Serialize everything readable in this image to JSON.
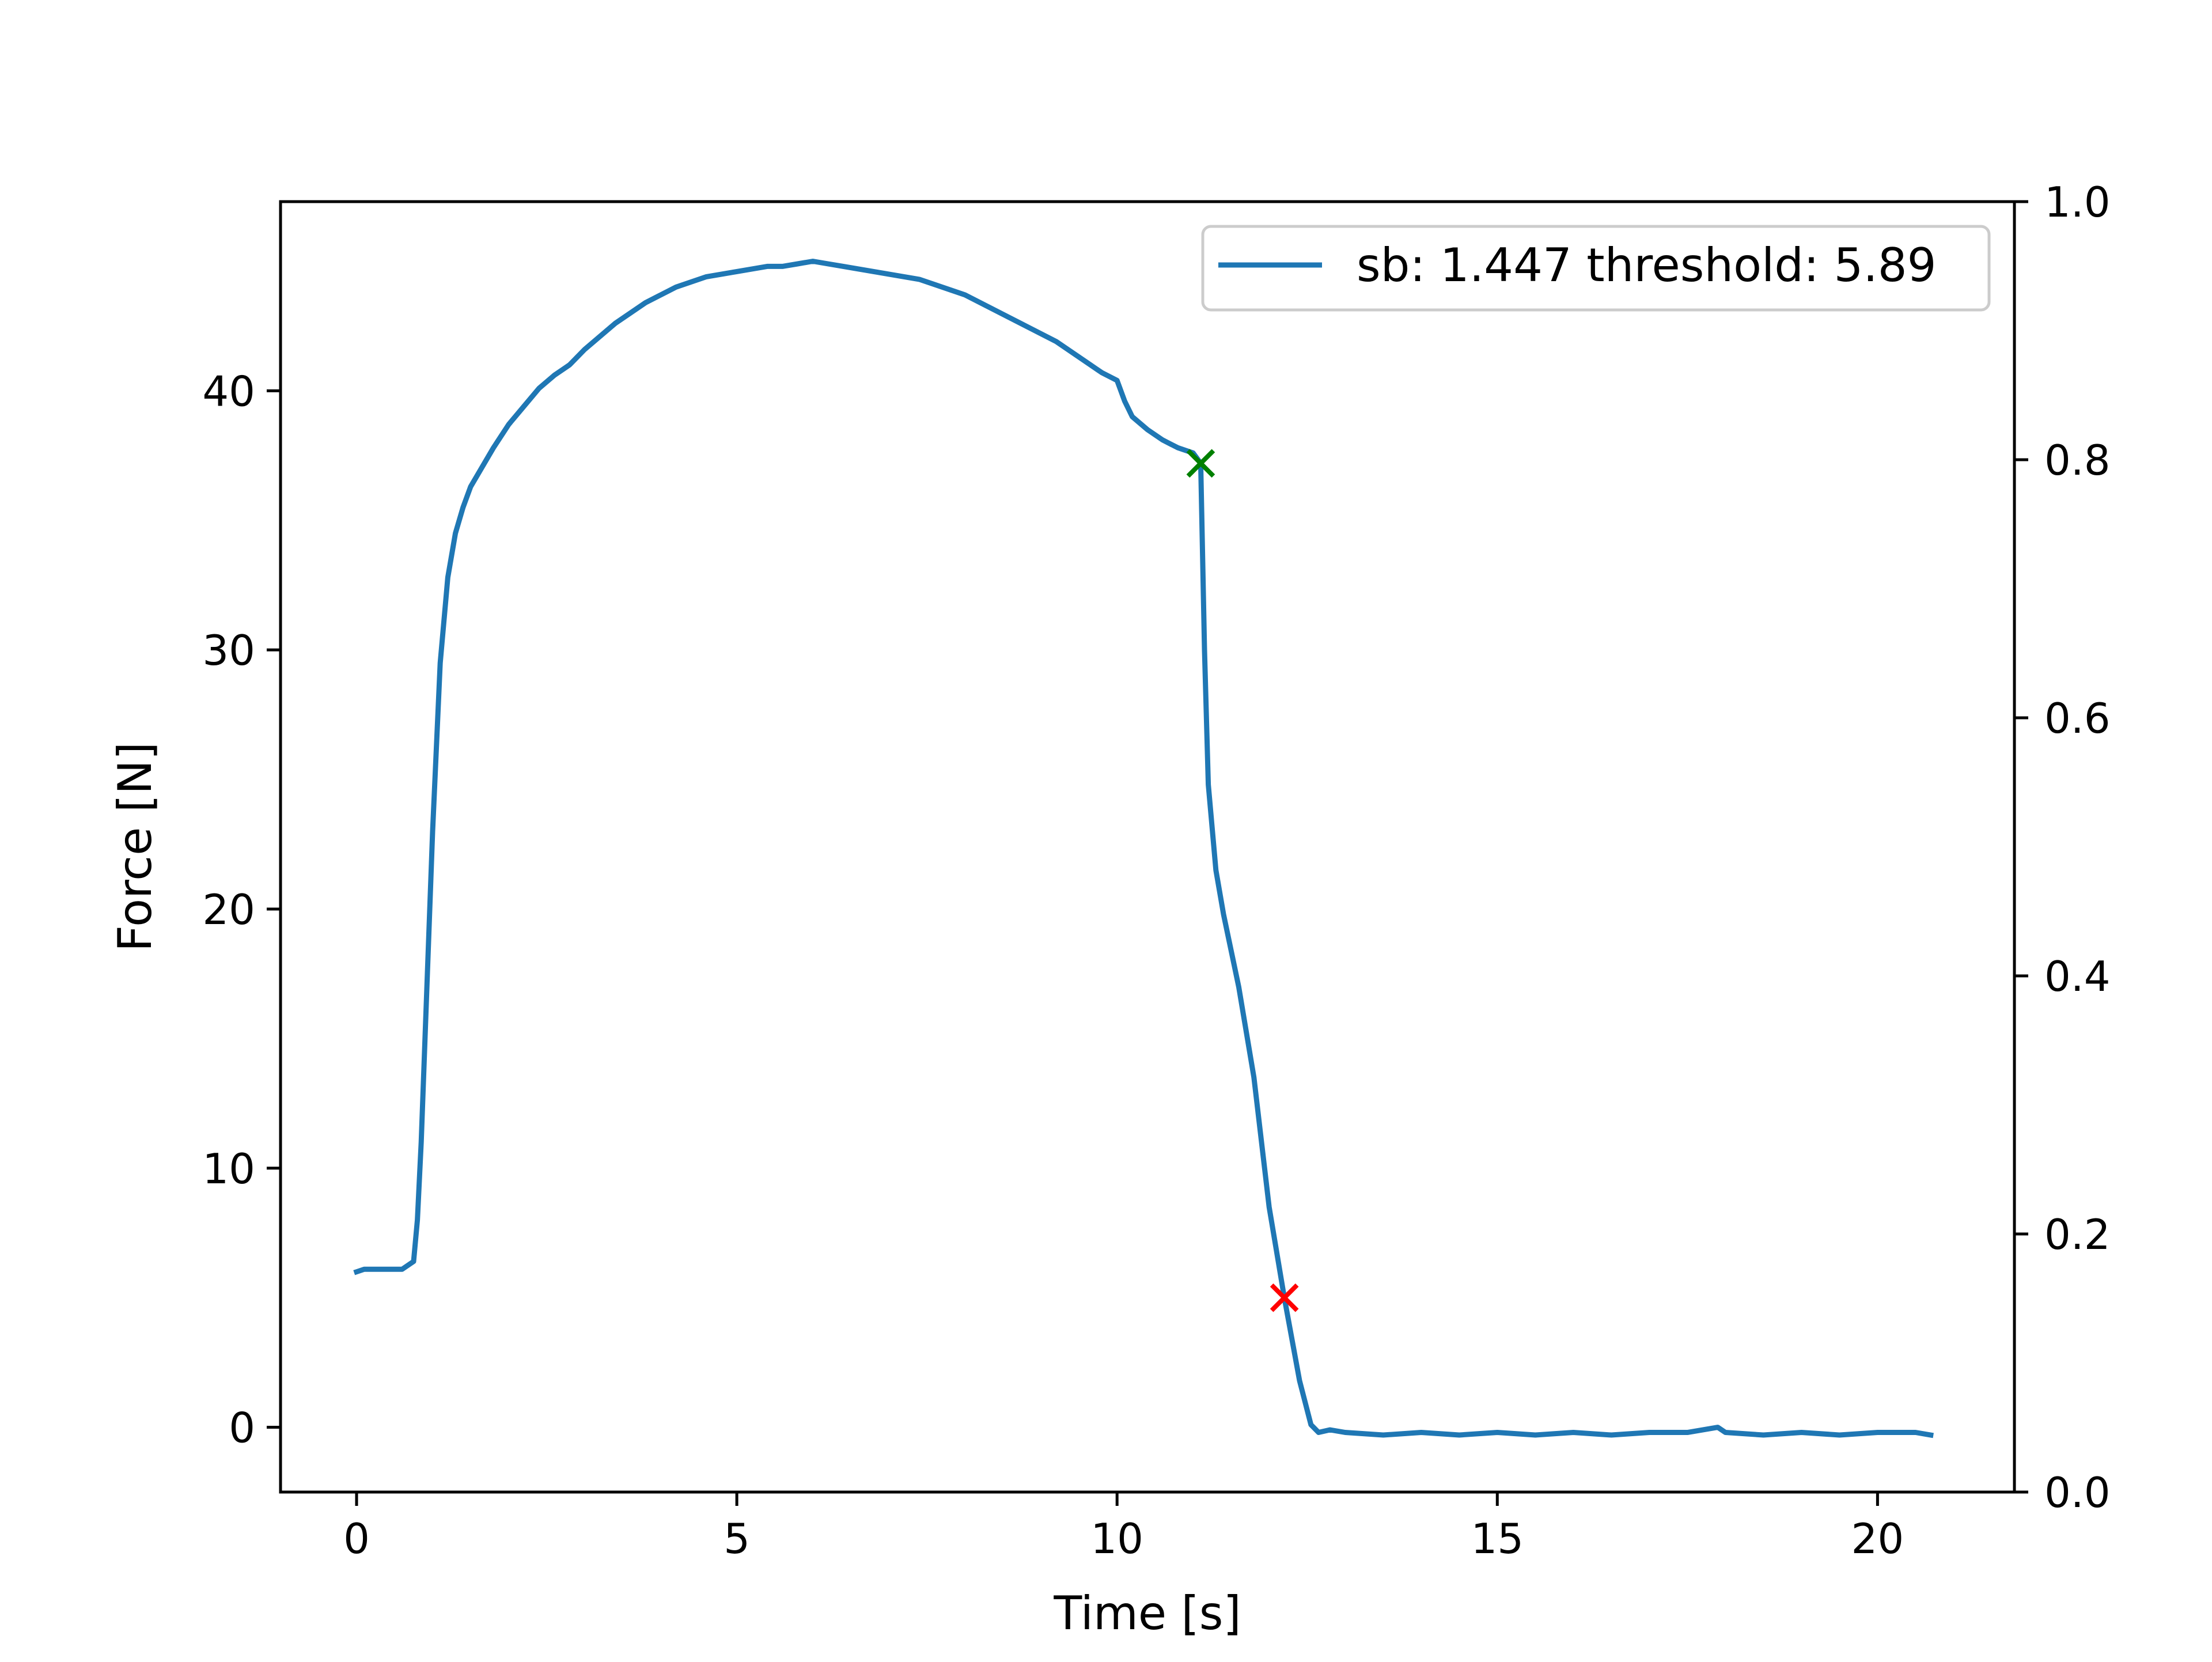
{
  "chart_data": {
    "type": "line",
    "title": "",
    "xlabel": "Time [s]",
    "ylabel": "Force [N]",
    "xlim": [
      -1.0,
      21.8
    ],
    "ylim": [
      -2.5,
      47.3
    ],
    "y2lim": [
      0.0,
      1.0
    ],
    "x_ticks": [
      0,
      5,
      10,
      15,
      20
    ],
    "y_ticks": [
      0,
      10,
      20,
      30,
      40
    ],
    "y2_ticks": [
      0.0,
      0.2,
      0.4,
      0.6,
      0.8,
      1.0
    ],
    "x_tick_labels": [
      "0",
      "5",
      "10",
      "15",
      "20"
    ],
    "y_tick_labels": [
      "0",
      "10",
      "20",
      "30",
      "40"
    ],
    "y2_tick_labels": [
      "0.0",
      "0.2",
      "0.4",
      "0.6",
      "0.8",
      "1.0"
    ],
    "grid": false,
    "legend": {
      "position": "top-right",
      "entries": [
        "sb: 1.447 threshold: 5.89"
      ]
    },
    "series": [
      {
        "name": "sb: 1.447 threshold: 5.89",
        "color": "#1f77b4",
        "x": [
          0.0,
          0.1,
          0.3,
          0.6,
          0.75,
          0.8,
          0.85,
          0.9,
          0.95,
          1.0,
          1.1,
          1.2,
          1.3,
          1.4,
          1.5,
          1.6,
          1.7,
          1.8,
          2.0,
          2.2,
          2.4,
          2.6,
          2.8,
          3.0,
          3.2,
          3.4,
          3.6,
          3.8,
          4.0,
          4.2,
          4.4,
          4.6,
          4.8,
          5.0,
          5.2,
          5.4,
          5.6,
          5.8,
          6.0,
          6.2,
          6.4,
          6.6,
          6.8,
          7.0,
          7.2,
          7.4,
          7.6,
          7.8,
          8.0,
          8.2,
          8.4,
          8.6,
          8.8,
          9.0,
          9.2,
          9.4,
          9.6,
          9.8,
          10.0,
          10.1,
          10.2,
          10.4,
          10.6,
          10.8,
          11.0,
          11.1,
          11.15,
          11.2,
          11.3,
          11.4,
          11.6,
          11.8,
          12.0,
          12.2,
          12.4,
          12.55,
          12.65,
          12.8,
          13.0,
          13.5,
          14.0,
          14.5,
          15.0,
          15.5,
          16.0,
          16.5,
          17.0,
          17.5,
          17.9,
          18.0,
          18.5,
          19.0,
          19.5,
          20.0,
          20.5,
          20.7
        ],
        "values": [
          6.0,
          6.1,
          6.1,
          6.1,
          6.4,
          8.0,
          11.0,
          15.0,
          19.0,
          23.0,
          29.5,
          32.8,
          34.5,
          35.5,
          36.3,
          36.8,
          37.3,
          37.8,
          38.7,
          39.4,
          40.1,
          40.6,
          41.0,
          41.6,
          42.1,
          42.6,
          43.0,
          43.4,
          43.7,
          44.0,
          44.2,
          44.4,
          44.5,
          44.6,
          44.7,
          44.8,
          44.8,
          44.9,
          45.0,
          44.9,
          44.8,
          44.7,
          44.6,
          44.5,
          44.4,
          44.3,
          44.1,
          43.9,
          43.7,
          43.4,
          43.1,
          42.8,
          42.5,
          42.2,
          41.9,
          41.5,
          41.1,
          40.7,
          40.4,
          39.6,
          39.0,
          38.5,
          38.1,
          37.8,
          37.6,
          37.2,
          30.0,
          24.8,
          21.5,
          19.8,
          17.0,
          13.5,
          8.5,
          5.0,
          1.8,
          0.1,
          -0.2,
          -0.1,
          -0.2,
          -0.3,
          -0.2,
          -0.3,
          -0.2,
          -0.3,
          -0.2,
          -0.3,
          -0.2,
          -0.2,
          0.0,
          -0.2,
          -0.3,
          -0.2,
          -0.3,
          -0.2,
          -0.2,
          -0.3
        ]
      }
    ],
    "markers": [
      {
        "label": "green-x",
        "x": 11.1,
        "y": 37.2,
        "color": "#008000",
        "symbol": "x"
      },
      {
        "label": "red-x",
        "x": 12.2,
        "y": 5.0,
        "color": "#ff0000",
        "symbol": "x"
      }
    ]
  }
}
